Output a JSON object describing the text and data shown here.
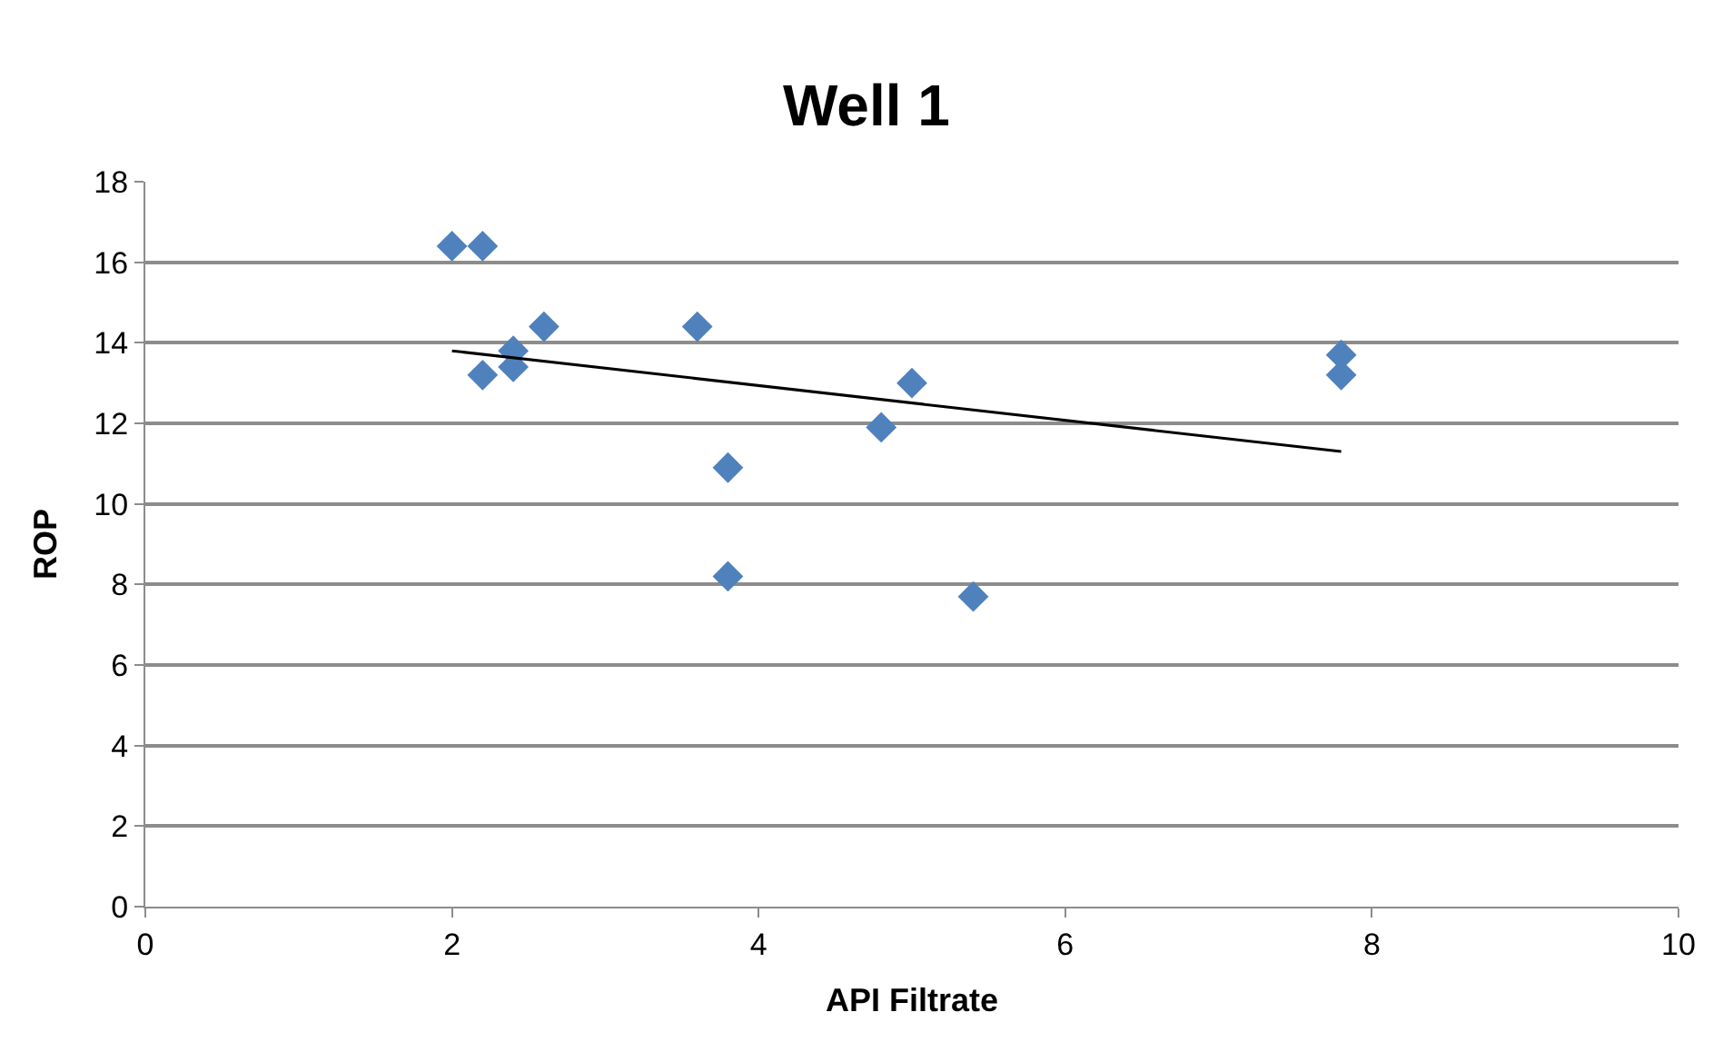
{
  "chart_data": {
    "type": "scatter",
    "title": "Well 1",
    "xlabel": "API Filtrate",
    "ylabel": "ROP",
    "series": [
      {
        "color": "#4f81bd",
        "marker": "diamond",
        "x": [
          2.0,
          2.2,
          2.2,
          2.4,
          2.4,
          2.6,
          3.6,
          3.8,
          3.8,
          4.8,
          5.0,
          5.4,
          7.8,
          7.8
        ],
        "values": [
          16.4,
          16.4,
          13.2,
          13.8,
          13.4,
          14.4,
          14.4,
          10.9,
          8.2,
          11.9,
          13.0,
          7.7,
          13.7,
          13.2
        ]
      },
      {
        "type": "line",
        "color": "#000000",
        "marker": "none",
        "x": [
          2.0,
          7.8
        ],
        "values": [
          13.8,
          11.3
        ]
      }
    ],
    "xlim": [
      0,
      10
    ],
    "xticks": [
      0,
      2,
      4,
      6,
      8,
      10
    ],
    "ylim": [
      0,
      18
    ],
    "yticks": [
      0,
      2,
      4,
      6,
      8,
      10,
      12,
      14,
      16,
      18
    ],
    "grid": "y"
  }
}
